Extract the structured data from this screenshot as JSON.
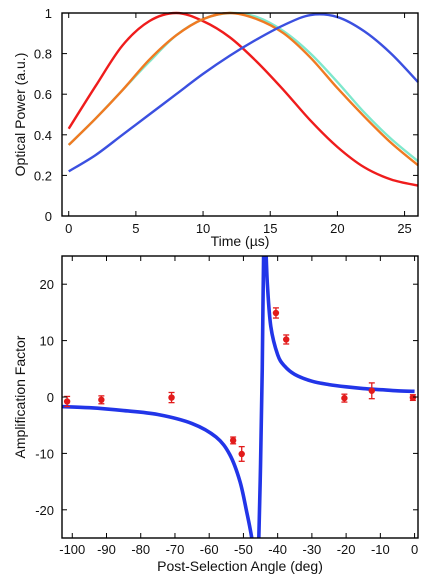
{
  "chart_data": [
    {
      "type": "line",
      "title": "",
      "xlabel": "Time (µs)",
      "ylabel": "Optical Power (a.u.)",
      "xlim": [
        -0.5,
        26
      ],
      "ylim": [
        0,
        1
      ],
      "xticks": [
        "0",
        "5",
        "10",
        "15",
        "20",
        "25"
      ],
      "yticks": [
        "0",
        "0.2",
        "0.4",
        "0.6",
        "0.8",
        "1"
      ],
      "grid": false,
      "legend": "none",
      "x": [
        0,
        2,
        4,
        6,
        8,
        10,
        12,
        14,
        16,
        18,
        20,
        22,
        24,
        26
      ],
      "series": [
        {
          "color": "#ef1c1c",
          "values": [
            0.43,
            0.64,
            0.84,
            0.96,
            1.0,
            0.96,
            0.88,
            0.76,
            0.62,
            0.47,
            0.34,
            0.24,
            0.18,
            0.15
          ]
        },
        {
          "color": "#7fe8cc",
          "values": [
            0.35,
            0.48,
            0.62,
            0.76,
            0.89,
            0.97,
            1.0,
            0.98,
            0.91,
            0.8,
            0.66,
            0.51,
            0.38,
            0.27
          ]
        },
        {
          "color": "#f07a22",
          "values": [
            0.35,
            0.48,
            0.62,
            0.77,
            0.89,
            0.97,
            1.0,
            0.97,
            0.9,
            0.78,
            0.63,
            0.49,
            0.36,
            0.25
          ]
        },
        {
          "color": "#3b50e0",
          "values": [
            0.22,
            0.3,
            0.4,
            0.5,
            0.6,
            0.7,
            0.79,
            0.87,
            0.94,
            0.99,
            0.98,
            0.91,
            0.8,
            0.66
          ]
        }
      ]
    },
    {
      "type": "scatter",
      "title": "",
      "xlabel": "Post-Selection Angle (deg)",
      "ylabel": "Amplification Factor",
      "xlim": [
        -103,
        1
      ],
      "ylim": [
        -25,
        25
      ],
      "xticks": [
        "-100",
        "-90",
        "-80",
        "-70",
        "-60",
        "-50",
        "-40",
        "-30",
        "-20",
        "-10",
        "0"
      ],
      "yticks": [
        "-20",
        "-10",
        "0",
        "10",
        "20"
      ],
      "grid": false,
      "legend": "none",
      "fit_color": "#2235e8",
      "fit": {
        "left": {
          "x": [
            -103,
            -95,
            -85,
            -75,
            -65,
            -58,
            -54,
            -51,
            -49,
            -48,
            -47,
            -46.5
          ],
          "y": [
            -1.7,
            -1.9,
            -2.4,
            -3.1,
            -4.7,
            -7.1,
            -10.2,
            -15.0,
            -20.5,
            -23.5,
            -27.0,
            -29.0
          ]
        },
        "right": {
          "x": [
            -45.5,
            -45,
            -44.5,
            -44,
            -43.5,
            -43,
            -42,
            -40,
            -38,
            -35,
            -30,
            -25,
            -20,
            -15,
            -10,
            -5,
            0
          ],
          "y": [
            -25,
            -12.0,
            5.0,
            30.0,
            27.0,
            20.0,
            12.5,
            7.5,
            5.5,
            4.0,
            2.8,
            2.2,
            1.8,
            1.5,
            1.3,
            1.1,
            1.0
          ]
        }
      },
      "points": {
        "color": "#e21b1b",
        "x": [
          -101.5,
          -91.5,
          -71,
          -53,
          -50.5,
          -40.5,
          -37.5,
          -20.5,
          -12.5,
          -0.5
        ],
        "y": [
          -0.8,
          -0.5,
          -0.1,
          -7.7,
          -10.1,
          14.9,
          10.2,
          -0.2,
          1.1,
          -0.1
        ],
        "err": [
          0.9,
          0.7,
          0.9,
          0.6,
          1.3,
          0.9,
          0.8,
          0.7,
          1.4,
          0.5
        ]
      }
    }
  ]
}
